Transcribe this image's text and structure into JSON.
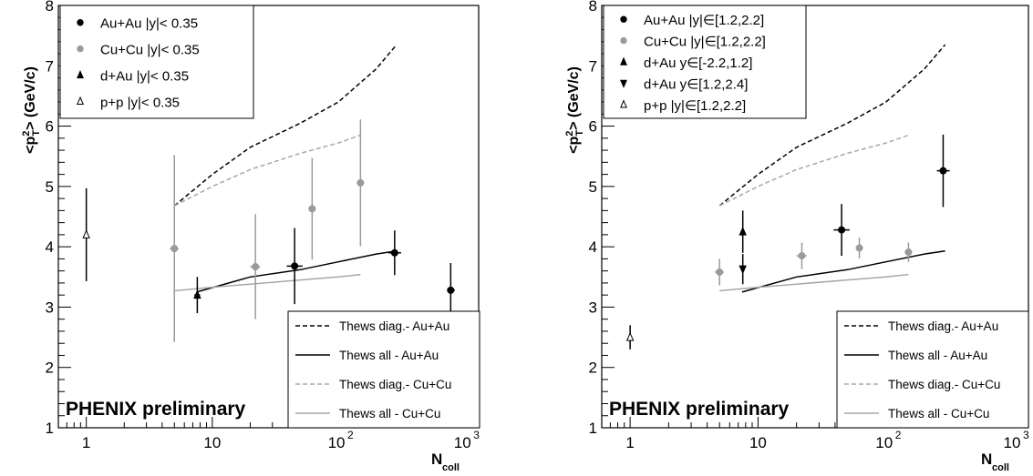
{
  "chart_data": [
    {
      "type": "scatter",
      "title": "",
      "watermark": "PHENIX preliminary",
      "ylabel": "<p",
      "ylabel_sup": "2",
      "ylabel_sub": "T",
      "ylabel_tail": "> (GeV/c)",
      "xlabel": "N",
      "xlabel_sub": "coll",
      "xscale": "log",
      "xlim": [
        0.6,
        1300
      ],
      "ylim": [
        1,
        8
      ],
      "x_ticklabels": [
        "1",
        "10",
        "10",
        "10"
      ],
      "x_tickexp": [
        "",
        "",
        "2",
        "3"
      ],
      "y_ticklabels": [
        "1",
        "2",
        "3",
        "4",
        "5",
        "6",
        "7",
        "8"
      ],
      "grid": false,
      "legend_placement": "top-left",
      "series": [
        {
          "name": "Au+Au |y|< 0.35",
          "marker": "circle",
          "color": "#000000",
          "points": [
            {
              "x": 45,
              "y": 3.68,
              "yerr": 0.63,
              "xerr_lo": 6,
              "xerr_hi": 7
            },
            {
              "x": 280,
              "y": 3.9,
              "yerr": 0.37,
              "xerr_lo": 30,
              "xerr_hi": 35
            },
            {
              "x": 780,
              "y": 3.28,
              "yerr": 0.45,
              "xerr_lo": 50,
              "xerr_hi": 60
            }
          ]
        },
        {
          "name": "Cu+Cu |y|< 0.35",
          "marker": "circle",
          "color": "#9a9a9a",
          "points": [
            {
              "x": 5,
              "y": 3.97,
              "yerr": 1.55,
              "xerr_lo": 0.4,
              "xerr_hi": 0.4
            },
            {
              "x": 22,
              "y": 3.67,
              "yerr": 0.87,
              "xerr_lo": 2,
              "xerr_hi": 2
            },
            {
              "x": 62,
              "y": 4.63,
              "yerr": 0.84,
              "xerr_lo": 4,
              "xerr_hi": 4
            },
            {
              "x": 150,
              "y": 5.06,
              "yerr": 1.05,
              "xerr_lo": 10,
              "xerr_hi": 10
            }
          ]
        },
        {
          "name": "d+Au |y|< 0.35",
          "marker": "triangle-up",
          "color": "#000000",
          "points": [
            {
              "x": 7.6,
              "y": 3.2,
              "yerr": 0.3,
              "xerr_lo": 0.4,
              "xerr_hi": 0.4
            }
          ]
        },
        {
          "name": "p+p |y|< 0.35",
          "marker": "triangle-up-open",
          "color": "#000000",
          "points": [
            {
              "x": 1,
              "y": 4.2,
              "yerr": 0.77,
              "xerr_lo": 0,
              "xerr_hi": 0
            }
          ]
        }
      ],
      "theory_legend": [
        {
          "name": "Thews diag.- Au+Au",
          "color": "#000000",
          "dash": "5,3"
        },
        {
          "name": "Thews all - Au+Au",
          "color": "#000000",
          "dash": ""
        },
        {
          "name": "Thews diag.- Cu+Cu",
          "color": "#a8a8a8",
          "dash": "5,3"
        },
        {
          "name": "Thews all - Cu+Cu",
          "color": "#a8a8a8",
          "dash": ""
        }
      ],
      "theory_curves": [
        {
          "name": "Thews diag.- Au+Au",
          "color": "#000000",
          "dash": "5,3",
          "x": [
            5,
            10,
            20,
            50,
            100,
            200,
            290
          ],
          "y": [
            4.68,
            5.2,
            5.65,
            6.05,
            6.4,
            6.95,
            7.35
          ]
        },
        {
          "name": "Thews all - Au+Au",
          "color": "#000000",
          "dash": "",
          "x": [
            7.5,
            20,
            50,
            100,
            200,
            290
          ],
          "y": [
            3.25,
            3.5,
            3.62,
            3.75,
            3.88,
            3.93
          ]
        },
        {
          "name": "Thews diag.- Cu+Cu",
          "color": "#a8a8a8",
          "dash": "5,3",
          "x": [
            5,
            10,
            20,
            50,
            100,
            150
          ],
          "y": [
            4.68,
            5.0,
            5.28,
            5.55,
            5.72,
            5.85
          ]
        },
        {
          "name": "Thews all - Cu+Cu",
          "color": "#a8a8a8",
          "dash": "",
          "x": [
            5,
            10,
            20,
            50,
            100,
            150
          ],
          "y": [
            3.27,
            3.33,
            3.38,
            3.45,
            3.5,
            3.54
          ]
        }
      ]
    },
    {
      "type": "scatter",
      "title": "",
      "watermark": "PHENIX preliminary",
      "ylabel": "<p",
      "ylabel_sup": "2",
      "ylabel_sub": "T",
      "ylabel_tail": "> (GeV/c)",
      "xlabel": "N",
      "xlabel_sub": "coll",
      "xscale": "log",
      "xlim": [
        0.6,
        1300
      ],
      "ylim": [
        1,
        8
      ],
      "x_ticklabels": [
        "1",
        "10",
        "10",
        "10"
      ],
      "x_tickexp": [
        "",
        "",
        "2",
        "3"
      ],
      "y_ticklabels": [
        "1",
        "2",
        "3",
        "4",
        "5",
        "6",
        "7",
        "8"
      ],
      "grid": false,
      "legend_placement": "top-left",
      "series": [
        {
          "name": "Au+Au |y|∈[1.2,2.2]",
          "marker": "circle",
          "color": "#000000",
          "points": [
            {
              "x": 45,
              "y": 4.28,
              "yerr": 0.43,
              "xerr_lo": 6,
              "xerr_hi": 7
            },
            {
              "x": 280,
              "y": 5.26,
              "yerr": 0.6,
              "xerr_lo": 30,
              "xerr_hi": 35
            }
          ]
        },
        {
          "name": "Cu+Cu |y|∈[1.2,2.2]",
          "marker": "circle",
          "color": "#9a9a9a",
          "points": [
            {
              "x": 5,
              "y": 3.58,
              "yerr": 0.22,
              "xerr_lo": 0.4,
              "xerr_hi": 0.4
            },
            {
              "x": 22,
              "y": 3.85,
              "yerr": 0.22,
              "xerr_lo": 2,
              "xerr_hi": 2
            },
            {
              "x": 62,
              "y": 3.98,
              "yerr": 0.17,
              "xerr_lo": 4,
              "xerr_hi": 4
            },
            {
              "x": 150,
              "y": 3.91,
              "yerr": 0.16,
              "xerr_lo": 10,
              "xerr_hi": 10
            }
          ]
        },
        {
          "name": "d+Au y∈[-2.2,1.2]",
          "marker": "triangle-up",
          "color": "#000000",
          "points": [
            {
              "x": 7.6,
              "y": 4.25,
              "yerr": 0.35,
              "xerr_lo": 0,
              "xerr_hi": 0
            }
          ]
        },
        {
          "name": "d+Au y∈[1.2,2.4]",
          "marker": "triangle-down",
          "color": "#000000",
          "points": [
            {
              "x": 7.6,
              "y": 3.63,
              "yerr": 0.25,
              "xerr_lo": 0,
              "xerr_hi": 0
            }
          ]
        },
        {
          "name": "p+p |y|∈[1.2,2.2]",
          "marker": "triangle-up-open",
          "color": "#000000",
          "points": [
            {
              "x": 1,
              "y": 2.5,
              "yerr": 0.2,
              "xerr_lo": 0,
              "xerr_hi": 0
            }
          ]
        }
      ],
      "theory_legend": [
        {
          "name": "Thews diag.- Au+Au",
          "color": "#000000",
          "dash": "5,3"
        },
        {
          "name": "Thews all - Au+Au",
          "color": "#000000",
          "dash": ""
        },
        {
          "name": "Thews diag.- Cu+Cu",
          "color": "#a8a8a8",
          "dash": "5,3"
        },
        {
          "name": "Thews all - Cu+Cu",
          "color": "#a8a8a8",
          "dash": ""
        }
      ],
      "theory_curves": [
        {
          "name": "Thews diag.- Au+Au",
          "color": "#000000",
          "dash": "5,3",
          "x": [
            5,
            10,
            20,
            50,
            100,
            200,
            290
          ],
          "y": [
            4.68,
            5.2,
            5.65,
            6.05,
            6.4,
            6.95,
            7.35
          ]
        },
        {
          "name": "Thews all - Au+Au",
          "color": "#000000",
          "dash": "",
          "x": [
            7.5,
            20,
            50,
            100,
            200,
            290
          ],
          "y": [
            3.25,
            3.5,
            3.62,
            3.75,
            3.88,
            3.93
          ]
        },
        {
          "name": "Thews diag.- Cu+Cu",
          "color": "#a8a8a8",
          "dash": "5,3",
          "x": [
            5,
            10,
            20,
            50,
            100,
            150
          ],
          "y": [
            4.68,
            5.0,
            5.28,
            5.55,
            5.72,
            5.85
          ]
        },
        {
          "name": "Thews all - Cu+Cu",
          "color": "#a8a8a8",
          "dash": "",
          "x": [
            5,
            10,
            20,
            50,
            100,
            150
          ],
          "y": [
            3.27,
            3.33,
            3.38,
            3.45,
            3.5,
            3.54
          ]
        }
      ]
    }
  ]
}
